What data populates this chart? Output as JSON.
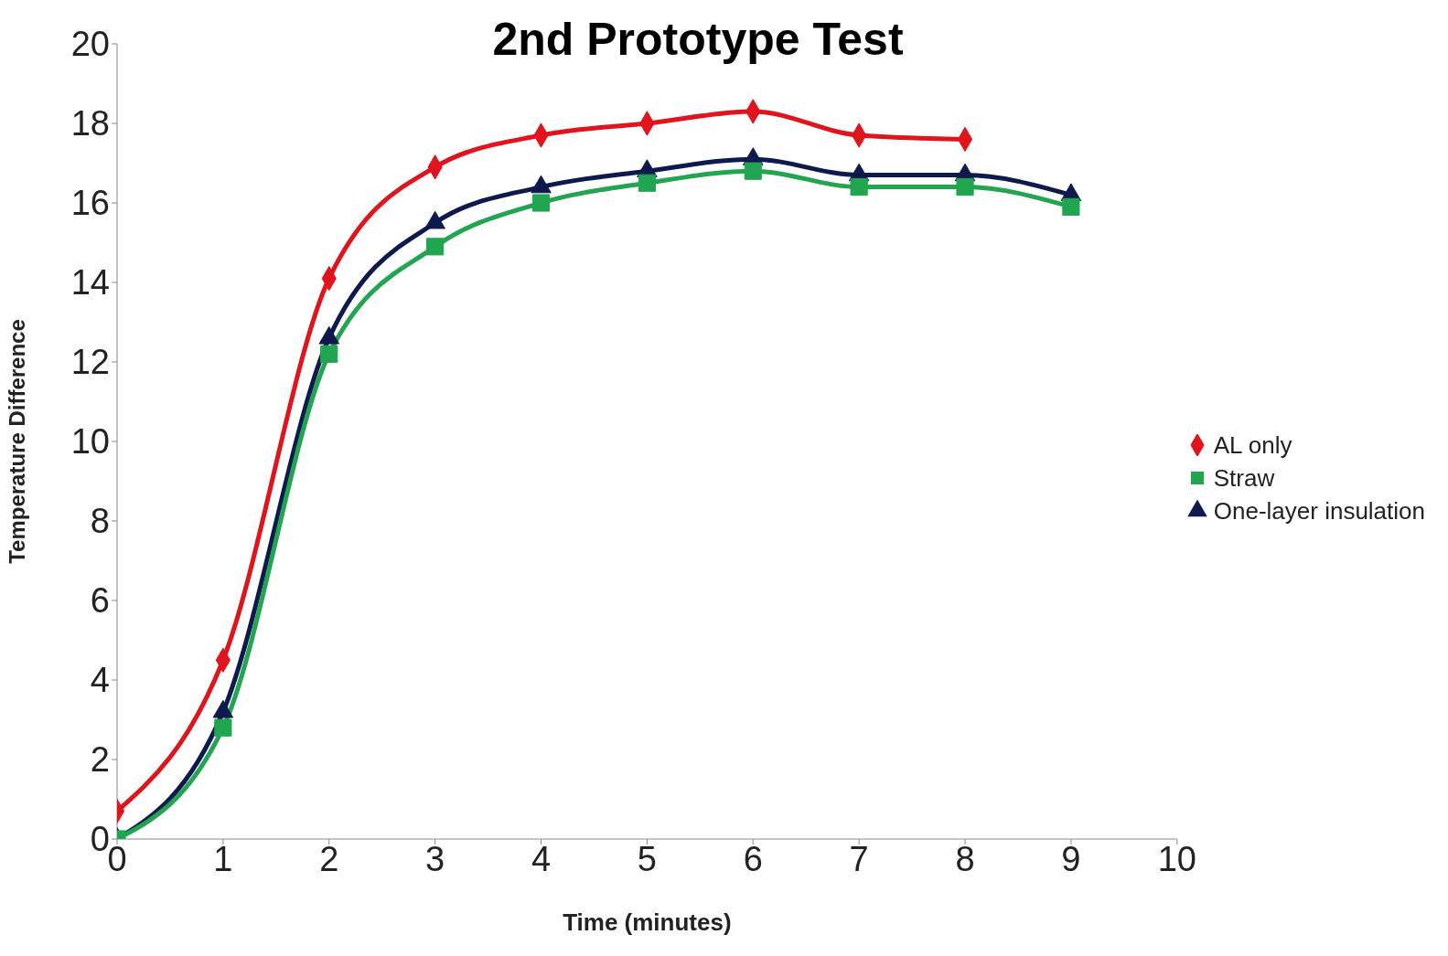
{
  "chart_data": {
    "type": "line",
    "title": "2nd Prototype Test",
    "xlabel": "Time (minutes)",
    "ylabel": "Temperature Difference",
    "xlim": [
      0,
      10
    ],
    "xticks": [
      0,
      1,
      2,
      3,
      4,
      5,
      6,
      7,
      8,
      9,
      10
    ],
    "ylim": [
      0,
      20
    ],
    "yticks": [
      0,
      2,
      4,
      6,
      8,
      10,
      12,
      14,
      16,
      18,
      20
    ],
    "grid": false,
    "legend": "right",
    "line_style": "solid",
    "series": [
      {
        "name": "AL only",
        "color": "#e0141c",
        "marker": "diamond",
        "x": [
          0,
          1,
          2,
          3,
          4,
          5,
          6,
          7,
          8
        ],
        "values": [
          0.7,
          4.5,
          14.1,
          16.9,
          17.7,
          18.0,
          18.3,
          17.7,
          17.6
        ]
      },
      {
        "name": "Straw",
        "color": "#22a550",
        "marker": "square",
        "x": [
          0,
          1,
          2,
          3,
          4,
          5,
          6,
          7,
          8,
          9
        ],
        "values": [
          0,
          2.8,
          12.2,
          14.9,
          16.0,
          16.5,
          16.8,
          16.4,
          16.4,
          15.9
        ]
      },
      {
        "name": "One-layer insulation",
        "color": "#0e1a4e",
        "marker": "triangle",
        "x": [
          0,
          1,
          2,
          3,
          4,
          5,
          6,
          7,
          8,
          9
        ],
        "values": [
          0,
          3.2,
          12.6,
          15.5,
          16.4,
          16.8,
          17.1,
          16.7,
          16.7,
          16.2
        ]
      }
    ]
  }
}
